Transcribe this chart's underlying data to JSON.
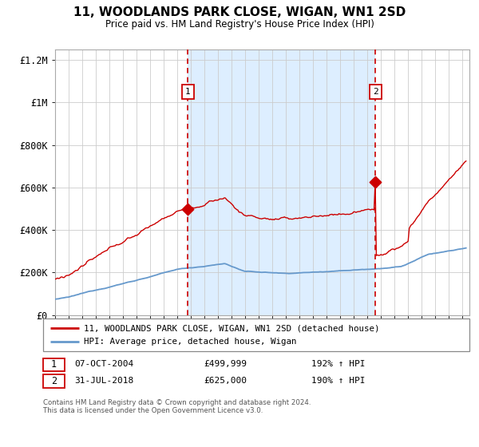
{
  "title": "11, WOODLANDS PARK CLOSE, WIGAN, WN1 2SD",
  "subtitle": "Price paid vs. HM Land Registry's House Price Index (HPI)",
  "legend_line1": "11, WOODLANDS PARK CLOSE, WIGAN, WN1 2SD (detached house)",
  "legend_line2": "HPI: Average price, detached house, Wigan",
  "transaction1_date": "07-OCT-2004",
  "transaction1_price": "£499,999",
  "transaction1_hpi": "192% ↑ HPI",
  "transaction2_date": "31-JUL-2018",
  "transaction2_price": "£625,000",
  "transaction2_hpi": "190% ↑ HPI",
  "footer": "Contains HM Land Registry data © Crown copyright and database right 2024.\nThis data is licensed under the Open Government Licence v3.0.",
  "transaction1_year": 2004.77,
  "transaction2_year": 2018.58,
  "transaction1_value": 499999,
  "transaction2_value": 625000,
  "red_color": "#cc0000",
  "blue_color": "#6699cc",
  "shading_color": "#ddeeff",
  "background_color": "#ffffff",
  "grid_color": "#cccccc",
  "ylim_min": 0,
  "ylim_max": 1250000,
  "xlim_start": 1995.0,
  "xlim_end": 2025.5,
  "yticks": [
    0,
    200000,
    400000,
    600000,
    800000,
    1000000,
    1200000
  ],
  "ytick_labels": [
    "£0",
    "£200K",
    "£400K",
    "£600K",
    "£800K",
    "£1M",
    "£1.2M"
  ]
}
